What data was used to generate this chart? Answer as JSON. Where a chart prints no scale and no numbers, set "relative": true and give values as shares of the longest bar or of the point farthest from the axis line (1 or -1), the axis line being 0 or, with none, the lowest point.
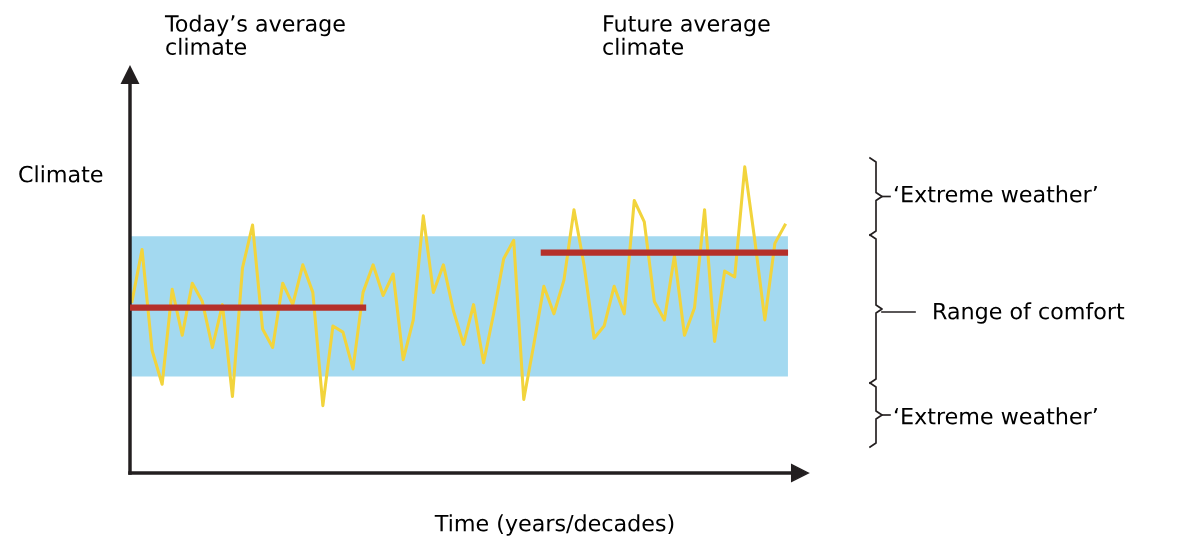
{
  "chart_data": {
    "type": "line",
    "relative": true,
    "xlabel": "Time (years/decades)",
    "ylabel": "Climate",
    "categories": [
      null,
      null,
      null,
      null,
      null,
      null,
      null,
      null,
      null,
      null,
      null,
      null,
      null,
      null,
      null,
      null,
      null,
      null,
      null,
      null,
      null,
      null,
      null,
      null,
      null,
      null,
      null,
      null,
      null,
      null,
      null,
      null,
      null,
      null,
      null,
      null,
      null,
      null,
      null,
      null,
      null,
      null,
      null,
      null,
      null,
      null,
      null,
      null,
      null,
      null,
      null,
      null,
      null,
      null,
      null,
      null,
      null,
      null,
      null,
      null,
      null,
      null,
      null,
      null,
      null,
      null
    ],
    "series": [
      {
        "color": "#f2d43c",
        "values": [
          0.56,
          0.73,
          0.4,
          0.29,
          0.6,
          0.45,
          0.62,
          0.56,
          0.41,
          0.55,
          0.25,
          0.67,
          0.81,
          0.47,
          0.41,
          0.62,
          0.55,
          0.68,
          0.59,
          0.22,
          0.48,
          0.46,
          0.34,
          0.59,
          0.68,
          0.58,
          0.65,
          0.37,
          0.5,
          0.84,
          0.59,
          0.68,
          0.53,
          0.42,
          0.55,
          0.36,
          0.52,
          0.7,
          0.76,
          0.24,
          0.42,
          0.61,
          0.52,
          0.63,
          0.86,
          0.68,
          0.44,
          0.48,
          0.61,
          0.52,
          0.89,
          0.82,
          0.56,
          0.5,
          0.71,
          0.45,
          0.54,
          0.86,
          0.43,
          0.66,
          0.64,
          1.0,
          0.76,
          0.5,
          0.75,
          0.81
        ]
      },
      {
        "color": "#b5302a",
        "values": [
          0.54,
          0.54,
          0.54,
          0.54,
          0.54,
          0.54,
          0.54,
          0.54,
          0.54,
          0.54,
          0.54,
          0.54,
          0.54,
          0.54,
          0.54,
          0.54,
          0.54,
          0.54,
          0.54,
          0.54,
          0.54,
          0.54,
          0.54,
          0.54,
          null,
          null,
          null,
          null,
          null,
          null,
          null,
          null,
          null,
          null,
          null,
          null,
          null,
          null,
          null,
          null,
          null,
          0.72,
          0.72,
          0.72,
          0.72,
          0.72,
          0.72,
          0.72,
          0.72,
          0.72,
          0.72,
          0.72,
          0.72,
          0.72,
          0.72,
          0.72,
          0.72,
          0.72,
          0.72,
          0.72,
          0.72,
          0.72,
          0.72,
          0.72,
          0.72,
          0.72
        ]
      }
    ],
    "bands": [
      {
        "axis": "y",
        "from": 0.315,
        "to": 0.773,
        "color": "#a3d9f0"
      }
    ],
    "annotations": [
      "Today’s average\nclimate",
      "Future average\nclimate",
      "‘Extreme weather’",
      "Range of comfort",
      "‘Extreme weather’"
    ],
    "grid": false,
    "legend": false
  }
}
